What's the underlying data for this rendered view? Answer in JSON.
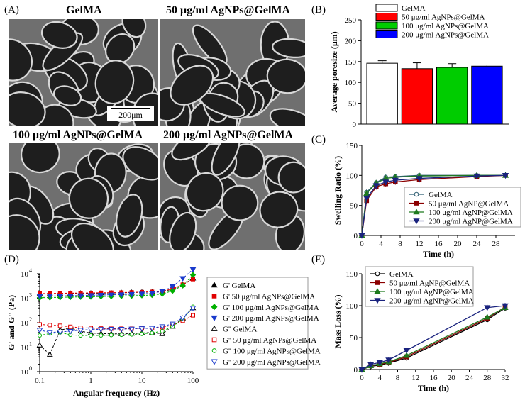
{
  "panels": {
    "A": "(A)",
    "B": "(B)",
    "C": "(C)",
    "D": "(D)",
    "E": "(E)"
  },
  "sem": {
    "titles": [
      "GelMA",
      "50 μg/ml AgNPs@GelMA",
      "100 μg/ml AgNPs@GelMA",
      "200 μg/ml AgNPs@GelMA"
    ],
    "scalebar": "200μm"
  },
  "chart_data": [
    {
      "id": "B",
      "type": "bar",
      "categories": [
        "GelMA",
        "50 μg/ml AgNPs@GelMA",
        "100 μg/ml AgNPs@GelMA",
        "200 μg/ml AgNPs@GelMA"
      ],
      "values": [
        146,
        133,
        136,
        139
      ],
      "errors": [
        6,
        14,
        9,
        3
      ],
      "colors": [
        "#ffffff",
        "#ff0000",
        "#00cc00",
        "#0000ff"
      ],
      "ylabel": "Average poresize (μm)",
      "ylim": [
        0,
        250
      ],
      "yticks": [
        0,
        50,
        100,
        150,
        200,
        250
      ],
      "legend_position": "top"
    },
    {
      "id": "C",
      "type": "line",
      "xlabel": "Time (h)",
      "ylabel": "Swelling Ratio (%)",
      "xlim": [
        0,
        32
      ],
      "ylim": [
        0,
        150
      ],
      "xticks": [
        0,
        4,
        8,
        12,
        16,
        20,
        24,
        28
      ],
      "yticks": [
        0,
        50,
        100,
        150
      ],
      "legend_position": "bottom-right",
      "series": [
        {
          "name": "GelMA",
          "color": "#2f5f73",
          "marker": "open-circle",
          "x": [
            0,
            1,
            3,
            5,
            7,
            12,
            24,
            30
          ],
          "y": [
            0,
            72,
            88,
            97,
            98,
            100,
            100,
            100
          ]
        },
        {
          "name": "50 μg/ml AgNP@GelMA",
          "color": "#8b0000",
          "marker": "square",
          "x": [
            0,
            1,
            3,
            5,
            7,
            12,
            24,
            30
          ],
          "y": [
            0,
            58,
            81,
            86,
            89,
            93,
            98,
            100
          ]
        },
        {
          "name": "100 μg/ml AgNP@GelMA",
          "color": "#1f7a1f",
          "marker": "triangle",
          "x": [
            0,
            1,
            3,
            5,
            7,
            12,
            24,
            30
          ],
          "y": [
            0,
            70,
            87,
            95,
            97,
            99,
            100,
            100
          ]
        },
        {
          "name": "200 μg/ml AgNP@GelMA",
          "color": "#1a237e",
          "marker": "triangle-down",
          "x": [
            0,
            1,
            3,
            5,
            7,
            12,
            24,
            30
          ],
          "y": [
            0,
            62,
            83,
            89,
            92,
            95,
            99,
            100
          ]
        }
      ]
    },
    {
      "id": "D",
      "type": "scatter",
      "xlabel": "Angular frequency (Hz)",
      "ylabel": "G' and G'' (Pa)",
      "xscale": "log",
      "yscale": "log",
      "xlim": [
        0.1,
        100
      ],
      "ylim": [
        1,
        10000
      ],
      "xticks": [
        "0.1",
        "1",
        "10",
        "100"
      ],
      "yticks": [
        {
          "exp": "0"
        },
        {
          "exp": "1"
        },
        {
          "exp": "2"
        },
        {
          "exp": "3"
        },
        {
          "exp": "4"
        }
      ],
      "legend_position": "right",
      "x": [
        0.1,
        0.158,
        0.251,
        0.398,
        0.631,
        1,
        1.58,
        2.51,
        3.98,
        6.31,
        10,
        15.8,
        25.1,
        39.8,
        63.1,
        100
      ],
      "series": [
        {
          "name": "G' GelMA",
          "color": "#000000",
          "marker": "triangle",
          "y": [
            1500,
            1520,
            1540,
            1560,
            1580,
            1600,
            1620,
            1650,
            1670,
            1700,
            1750,
            1800,
            1900,
            2300,
            3500,
            6500
          ]
        },
        {
          "name": "G' 50 μg/ml AgNPs@GelMA",
          "color": "#e00000",
          "marker": "square",
          "y": [
            1550,
            1570,
            1590,
            1610,
            1630,
            1650,
            1670,
            1690,
            1710,
            1740,
            1780,
            1830,
            1950,
            2400,
            3600,
            6000
          ]
        },
        {
          "name": "G' 100 μg/ml AgNPs@GelMA",
          "color": "#00b000",
          "marker": "diamond",
          "y": [
            1050,
            1070,
            1090,
            1110,
            1130,
            1150,
            1180,
            1200,
            1230,
            1260,
            1300,
            1350,
            1500,
            2000,
            3300,
            9000
          ]
        },
        {
          "name": "G' 200 μg/ml AgNPs@GelMA",
          "color": "#1a3acc",
          "marker": "triangle-down",
          "y": [
            1200,
            1220,
            1240,
            1260,
            1290,
            1320,
            1350,
            1380,
            1410,
            1450,
            1500,
            1600,
            1900,
            3000,
            6500,
            15000
          ]
        },
        {
          "name": "G'' GelMA",
          "color": "#000000",
          "marker": "open-triangle",
          "y": [
            12,
            5,
            50,
            60,
            45,
            38,
            36,
            35,
            35,
            36,
            38,
            40,
            35,
            70,
            150,
            400
          ]
        },
        {
          "name": "G'' 50 μg/ml AgNPs@GelMA",
          "color": "#e00000",
          "marker": "open-square",
          "y": [
            85,
            80,
            75,
            68,
            62,
            60,
            58,
            57,
            57,
            57,
            58,
            60,
            65,
            80,
            120,
            200
          ]
        },
        {
          "name": "G'' 100 μg/ml AgNPs@GelMA",
          "color": "#00b000",
          "marker": "open-circle",
          "y": [
            30,
            36,
            40,
            32,
            30,
            30,
            30,
            31,
            32,
            33,
            35,
            38,
            45,
            70,
            140,
            450
          ]
        },
        {
          "name": "G'' 200 μg/ml AgNPs@GelMA",
          "color": "#1a3acc",
          "marker": "open-triangle-down",
          "y": [
            50,
            40,
            42,
            45,
            50,
            52,
            54,
            55,
            55,
            56,
            58,
            60,
            70,
            90,
            160,
            400
          ]
        }
      ]
    },
    {
      "id": "E",
      "type": "line",
      "xlabel": "Time (h)",
      "ylabel": "Mass Loss (%)",
      "xlim": [
        0,
        32
      ],
      "ylim": [
        0,
        150
      ],
      "xticks": [
        0,
        4,
        8,
        12,
        16,
        20,
        24,
        28,
        32
      ],
      "yticks": [
        0,
        50,
        100,
        150
      ],
      "legend_position": "top-left",
      "series": [
        {
          "name": "GelMA",
          "color": "#000000",
          "marker": "open-circle",
          "x": [
            0,
            2,
            4,
            6,
            10,
            28,
            32
          ],
          "y": [
            0,
            5,
            7,
            10,
            18,
            78,
            96
          ]
        },
        {
          "name": "50 μg/ml AgNP@GelMA",
          "color": "#8b0000",
          "marker": "square",
          "x": [
            0,
            2,
            4,
            6,
            10,
            28,
            32
          ],
          "y": [
            0,
            6,
            8,
            11,
            20,
            80,
            98
          ]
        },
        {
          "name": "100 μg/ml AgNP@GelMA",
          "color": "#1f7a1f",
          "marker": "triangle",
          "x": [
            0,
            2,
            4,
            6,
            10,
            28,
            32
          ],
          "y": [
            0,
            6,
            9,
            12,
            22,
            82,
            97
          ]
        },
        {
          "name": "200 μg/ml AgNP@GelMA",
          "color": "#1a237e",
          "marker": "triangle-down",
          "x": [
            0,
            2,
            4,
            6,
            10,
            28,
            32
          ],
          "y": [
            0,
            8,
            11,
            15,
            30,
            97,
            100
          ]
        }
      ]
    }
  ]
}
